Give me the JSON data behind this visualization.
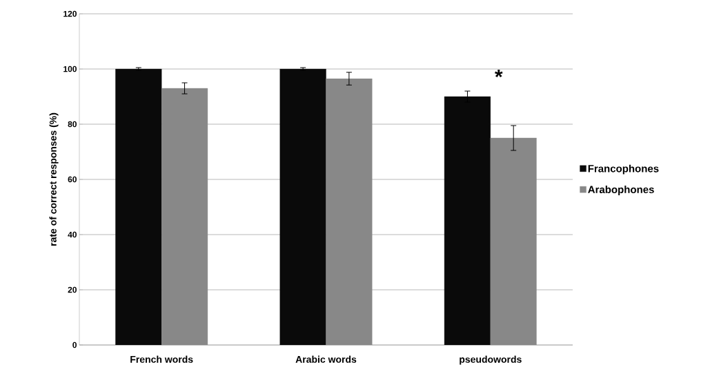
{
  "chart_data": {
    "type": "bar",
    "ylabel": "rate of correct responses (%)",
    "categories": [
      "French words",
      "Arabic words",
      "pseudowords"
    ],
    "series": [
      {
        "name": "Francophones",
        "color": "#0a0a0a",
        "values": [
          100,
          100,
          90
        ],
        "errors": [
          0.5,
          0.5,
          2
        ]
      },
      {
        "name": "Arabophones",
        "color": "#888888",
        "values": [
          93,
          96.5,
          75
        ],
        "errors": [
          2,
          2.3,
          4.5
        ]
      }
    ],
    "ylim": [
      0,
      120
    ],
    "yticks": [
      0,
      20,
      40,
      60,
      80,
      100,
      120
    ],
    "grid": "y",
    "legend": "right",
    "annotations": [
      "*"
    ]
  }
}
